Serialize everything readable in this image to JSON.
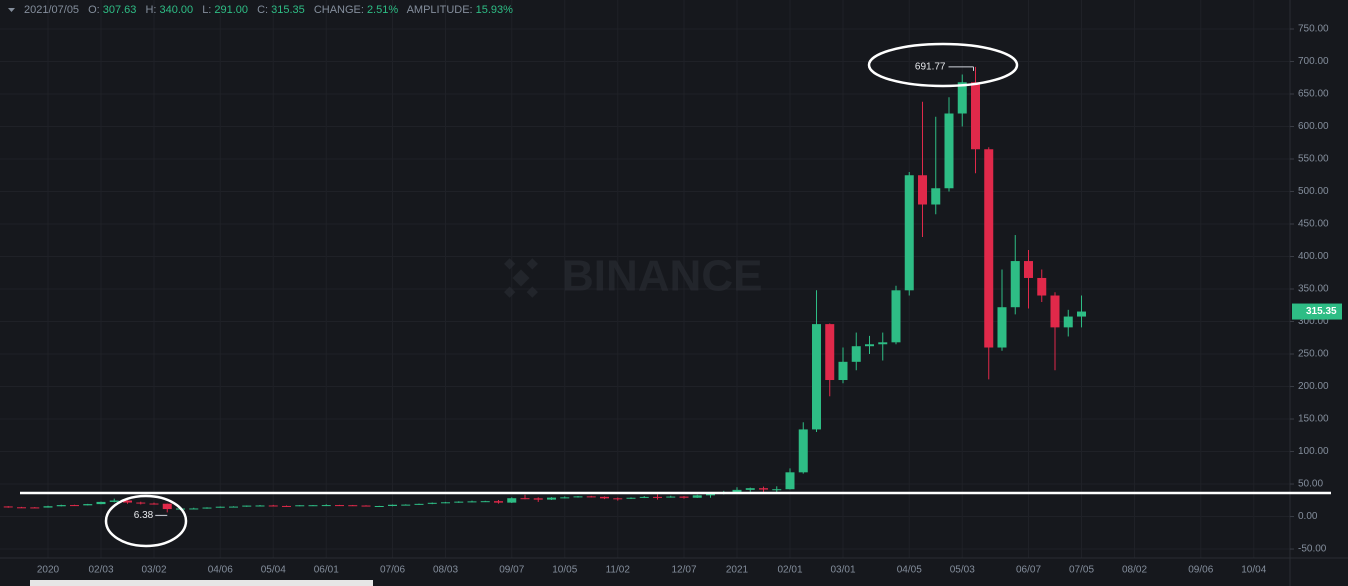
{
  "chart_data": {
    "type": "candlestick",
    "watermark": "BINANCE",
    "info": {
      "date": "2021/07/05",
      "items": [
        {
          "label": "O:",
          "value": "307.63"
        },
        {
          "label": "H:",
          "value": "340.00"
        },
        {
          "label": "L:",
          "value": "291.00"
        },
        {
          "label": "C:",
          "value": "315.35"
        },
        {
          "label": "CHANGE:",
          "value": "2.51%"
        },
        {
          "label": "AMPLITUDE:",
          "value": "15.93%"
        }
      ]
    },
    "categories": [
      null,
      null,
      null,
      "2020",
      null,
      null,
      null,
      "02/03",
      null,
      null,
      null,
      "03/02",
      null,
      null,
      null,
      null,
      "04/06",
      null,
      null,
      null,
      "05/04",
      null,
      null,
      null,
      "06/01",
      null,
      null,
      null,
      null,
      "07/06",
      null,
      null,
      null,
      "08/03",
      null,
      null,
      null,
      null,
      "09/07",
      null,
      null,
      null,
      "10/05",
      null,
      null,
      null,
      "11/02",
      null,
      null,
      null,
      null,
      "12/07",
      null,
      null,
      null,
      "2021",
      null,
      null,
      null,
      "02/01",
      null,
      null,
      null,
      "03/01",
      null,
      null,
      null,
      null,
      "04/05",
      null,
      null,
      null,
      "05/03",
      null,
      null,
      null,
      null,
      "06/07",
      null,
      null,
      null,
      "07/05",
      null,
      null,
      null,
      "08/02",
      null,
      null,
      null,
      null,
      "09/06",
      null,
      null,
      null,
      "10/04"
    ],
    "open": [
      15.5,
      14.2,
      14.0,
      13.8,
      15.8,
      17.6,
      17.2,
      19.1,
      22.5,
      24.6,
      21.5,
      20.0,
      19.7,
      11.5,
      12.3,
      12.4,
      13.8,
      15.1,
      15.3,
      16.8,
      17.0,
      16.3,
      16.1,
      17.3,
      17.4,
      17.6,
      17.4,
      16.9,
      15.6,
      16.2,
      18.1,
      18.3,
      19.5,
      21.1,
      21.9,
      22.9,
      23.3,
      23.6,
      21.4,
      28.2,
      28.0,
      26.0,
      29.1,
      29.5,
      31.0,
      30.3,
      28.0,
      27.8,
      28.9,
      30.2,
      29.8,
      30.7,
      28.9,
      32.6,
      36.0,
      37.4,
      41.0,
      43.6,
      41.5,
      42.0,
      68,
      134,
      296,
      210,
      238,
      262,
      265,
      268,
      348,
      525,
      480,
      505,
      620,
      668,
      565,
      260,
      322,
      393,
      367,
      340,
      291,
      307.63,
      null,
      null,
      null,
      null,
      null,
      null,
      null,
      null,
      null,
      null,
      null,
      null,
      null
    ],
    "high": [
      16,
      14.8,
      14.6,
      16.5,
      18.2,
      18.2,
      19.5,
      23.0,
      27.5,
      25.3,
      22.8,
      21.3,
      20.0,
      13.5,
      13.5,
      14.2,
      15.5,
      15.8,
      17.0,
      17.8,
      17.9,
      17.0,
      17.6,
      17.8,
      18.8,
      18.0,
      17.8,
      17.3,
      16.5,
      18.5,
      18.8,
      19.8,
      21.6,
      22.5,
      23.5,
      24.5,
      24.2,
      25.5,
      29.5,
      33.5,
      29.5,
      29.8,
      31.0,
      31.5,
      31.8,
      31.0,
      29.2,
      29.5,
      31.6,
      34.0,
      32.0,
      31.5,
      33.5,
      36.5,
      39.5,
      45.0,
      44.5,
      46.0,
      46.5,
      74,
      145,
      348,
      297,
      260,
      283,
      278,
      283,
      355,
      530,
      638,
      615,
      645,
      680,
      691.77,
      568,
      380,
      433,
      410,
      380,
      345,
      318,
      340,
      null,
      null,
      null,
      null,
      null,
      null,
      null,
      null,
      null,
      null,
      null,
      null,
      null
    ],
    "low": [
      13.5,
      13.8,
      13.3,
      13.6,
      15.5,
      16.4,
      17.0,
      18.8,
      21.8,
      19.7,
      18.6,
      18.4,
      6.38,
      10.0,
      11.5,
      12.0,
      13.6,
      14.3,
      14.9,
      16.0,
      15.4,
      14.9,
      15.9,
      16.5,
      17.0,
      16.6,
      16.5,
      15.4,
      15.2,
      15.9,
      17.4,
      17.9,
      19.0,
      20.4,
      21.0,
      22.0,
      22.6,
      19.8,
      20.8,
      26.5,
      22.5,
      25.5,
      27.8,
      29.0,
      29.2,
      26.8,
      24.5,
      27.0,
      28.4,
      26.0,
      29.0,
      27.5,
      28.5,
      28.8,
      34.0,
      36.5,
      38.0,
      37.5,
      36.0,
      41.5,
      66,
      130,
      185,
      205,
      225,
      250,
      240,
      265,
      340,
      430,
      465,
      500,
      600,
      528,
      211,
      255,
      311,
      320,
      330,
      225,
      277,
      291,
      null,
      null,
      null,
      null,
      null,
      null,
      null,
      null,
      null,
      null,
      null,
      null,
      null
    ],
    "close": [
      14.2,
      14.0,
      13.8,
      15.8,
      17.6,
      17.2,
      19.1,
      22.5,
      24.6,
      21.5,
      20.0,
      19.7,
      11.5,
      12.3,
      12.4,
      13.8,
      15.1,
      15.3,
      16.8,
      17.0,
      16.3,
      16.1,
      17.3,
      17.4,
      17.6,
      17.4,
      16.9,
      15.6,
      16.2,
      18.1,
      18.3,
      19.5,
      21.1,
      21.9,
      22.9,
      23.3,
      23.6,
      21.4,
      28.2,
      28.0,
      26.0,
      29.1,
      29.5,
      31.0,
      30.3,
      28.0,
      27.8,
      28.9,
      30.2,
      29.8,
      30.7,
      28.9,
      32.6,
      36.0,
      37.4,
      41.0,
      43.6,
      41.5,
      42.0,
      68,
      134,
      296,
      210,
      238,
      262,
      265,
      268,
      348,
      525,
      480,
      505,
      620,
      668,
      565,
      260,
      322,
      393,
      367,
      340,
      291,
      307.63,
      315.35,
      null,
      null,
      null,
      null,
      null,
      null,
      null,
      null,
      null,
      null,
      null,
      null,
      null
    ],
    "up_color": "#2ebd85",
    "down_color": "#e0294a",
    "ylim": [
      -63.8,
      794.6
    ],
    "yticks": [
      {
        "value": -50,
        "label": "-50.00"
      },
      {
        "value": 0,
        "label": "0.00"
      },
      {
        "value": 50,
        "label": "50.00"
      },
      {
        "value": 100,
        "label": "100.00"
      },
      {
        "value": 150,
        "label": "150.00"
      },
      {
        "value": 200,
        "label": "200.00"
      },
      {
        "value": 250,
        "label": "250.00"
      },
      {
        "value": 300,
        "label": "300.00"
      },
      {
        "value": 350,
        "label": "350.00"
      },
      {
        "value": 400,
        "label": "400.00"
      },
      {
        "value": 450,
        "label": "450.00"
      },
      {
        "value": 500,
        "label": "500.00"
      },
      {
        "value": 550,
        "label": "550.00"
      },
      {
        "value": 600,
        "label": "600.00"
      },
      {
        "value": 650,
        "label": "650.00"
      },
      {
        "value": 700,
        "label": "700.00"
      },
      {
        "value": 750,
        "label": "750.00"
      }
    ],
    "grid": true,
    "max_index": 73,
    "min_index": 12,
    "last_index": 81
  }
}
